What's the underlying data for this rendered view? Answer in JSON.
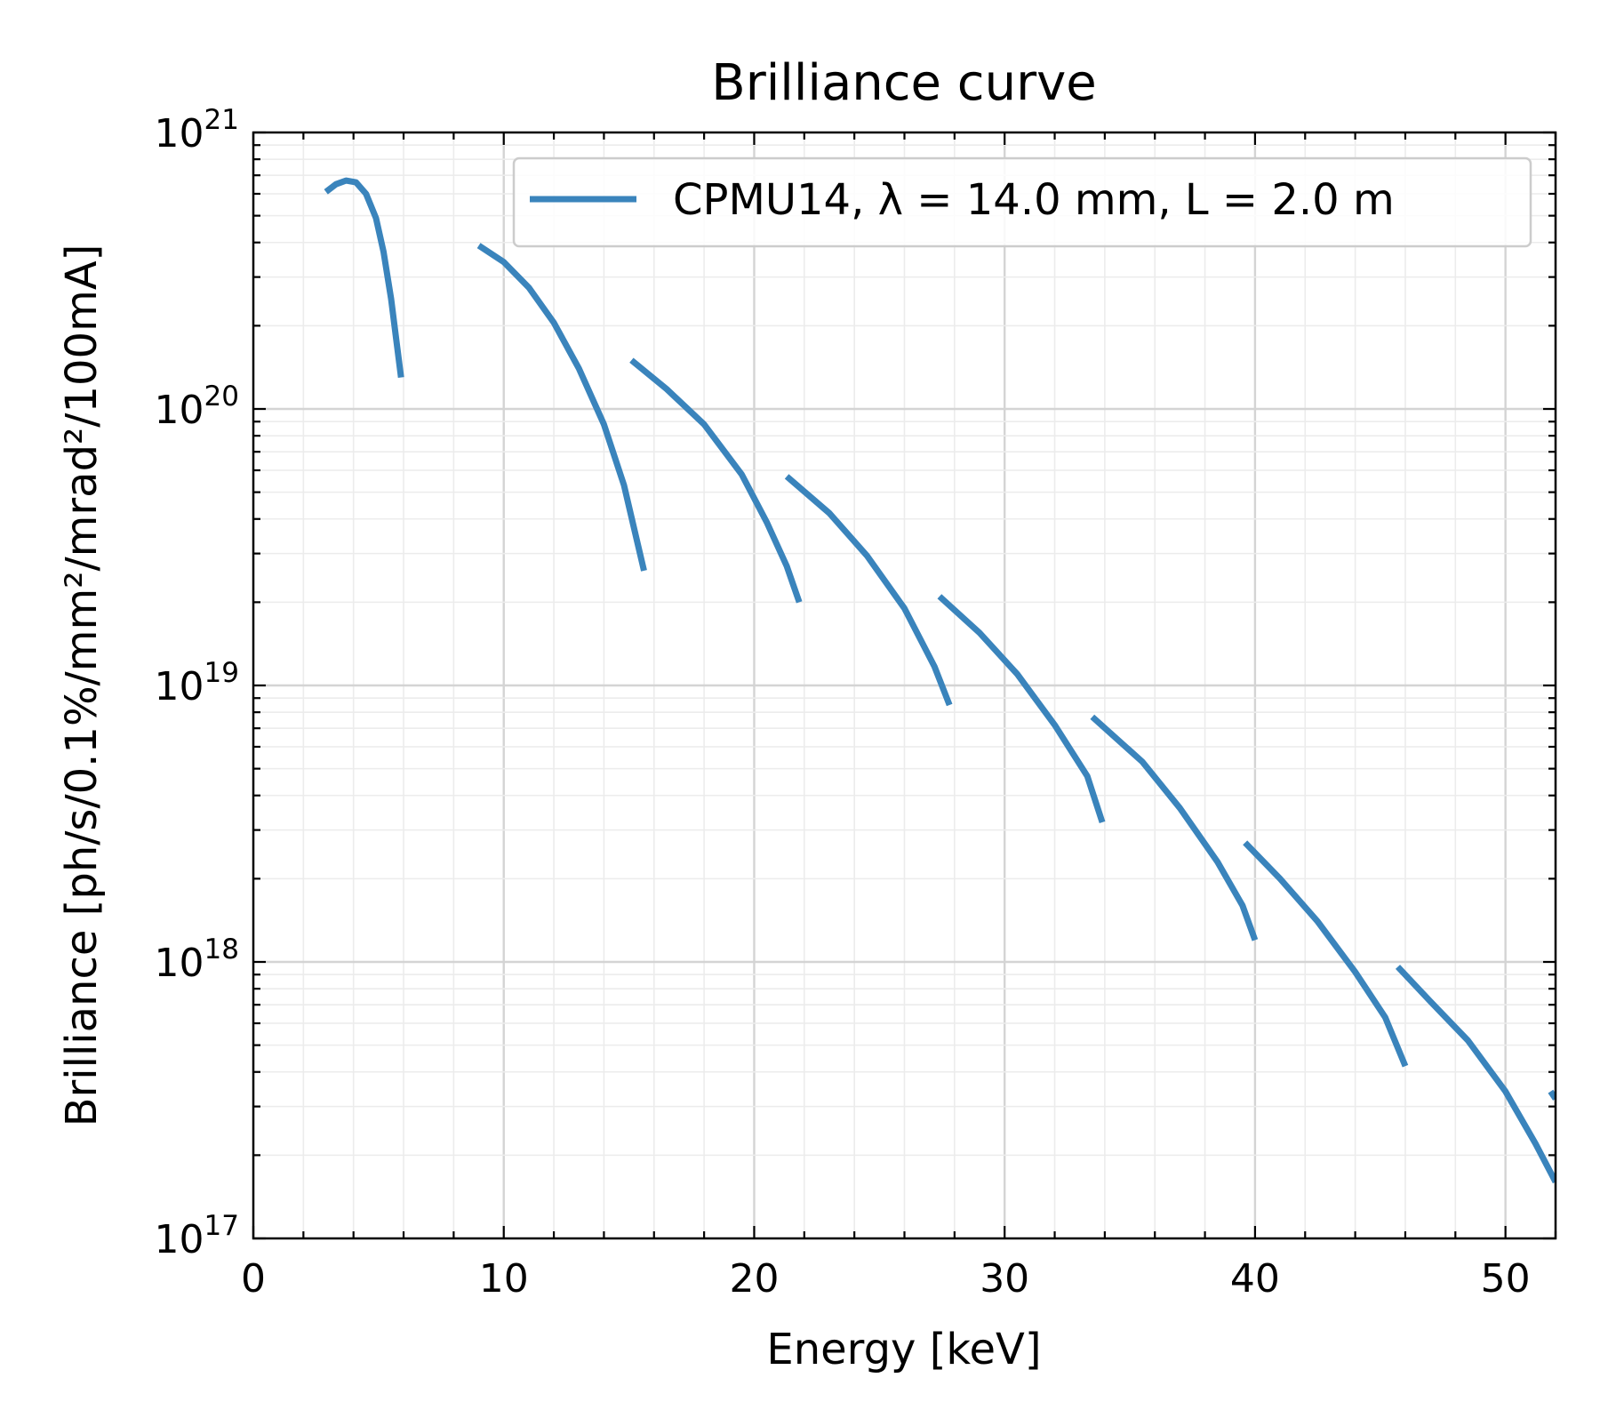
{
  "chart_data": {
    "type": "line",
    "title": "Brilliance curve",
    "xlabel": "Energy [keV]",
    "ylabel": "Brilliance [ph/s/0.1%/mm²/mrad²/100mA]",
    "xlim": [
      0,
      52
    ],
    "ylim": [
      1e+17,
      1e+21
    ],
    "yscale": "log",
    "grid": true,
    "legend": "top-right",
    "xticks": [
      {
        "value": 0,
        "label": "0"
      },
      {
        "value": 10,
        "label": "10"
      },
      {
        "value": 20,
        "label": "20"
      },
      {
        "value": 30,
        "label": "30"
      },
      {
        "value": 40,
        "label": "40"
      },
      {
        "value": 50,
        "label": "50"
      }
    ],
    "yticks": [
      {
        "value": 1e+17,
        "base": "10",
        "exp": "17"
      },
      {
        "value": 1e+18,
        "base": "10",
        "exp": "18"
      },
      {
        "value": 1e+19,
        "base": "10",
        "exp": "19"
      },
      {
        "value": 1e+20,
        "base": "10",
        "exp": "20"
      },
      {
        "value": 1e+21,
        "base": "10",
        "exp": "21"
      }
    ],
    "series": [
      {
        "name": "CPMU14, λ = 14.0 mm, L = 2.0 m",
        "color": "#3a84bc",
        "segments": [
          [
            [
              2.9,
              6.1e+20
            ],
            [
              3.3,
              6.5e+20
            ],
            [
              3.7,
              6.7e+20
            ],
            [
              4.1,
              6.6e+20
            ],
            [
              4.5,
              6e+20
            ],
            [
              4.9,
              4.9e+20
            ],
            [
              5.2,
              3.7e+20
            ],
            [
              5.5,
              2.5e+20
            ],
            [
              5.7,
              1.8e+20
            ],
            [
              5.9,
              1.3e+20
            ]
          ],
          [
            [
              9.0,
              3.9e+20
            ],
            [
              10.0,
              3.4e+20
            ],
            [
              11.0,
              2.75e+20
            ],
            [
              12.0,
              2.05e+20
            ],
            [
              13.0,
              1.4e+20
            ],
            [
              14.0,
              8.8e+19
            ],
            [
              14.8,
              5.3e+19
            ],
            [
              15.3,
              3.4e+19
            ],
            [
              15.6,
              2.6e+19
            ]
          ],
          [
            [
              15.1,
              1.5e+20
            ],
            [
              16.5,
              1.18e+20
            ],
            [
              18.0,
              8.8e+19
            ],
            [
              19.5,
              5.8e+19
            ],
            [
              20.5,
              3.9e+19
            ],
            [
              21.3,
              2.7e+19
            ],
            [
              21.8,
              2e+19
            ]
          ],
          [
            [
              21.3,
              5.7e+19
            ],
            [
              23.0,
              4.2e+19
            ],
            [
              24.5,
              2.95e+19
            ],
            [
              26.0,
              1.9e+19
            ],
            [
              27.2,
              1.17e+19
            ],
            [
              27.8,
              8.5e+18
            ]
          ],
          [
            [
              27.4,
              2.1e+19
            ],
            [
              29.0,
              1.55e+19
            ],
            [
              30.5,
              1.1e+19
            ],
            [
              32.0,
              7.2e+18
            ],
            [
              33.3,
              4.7e+18
            ],
            [
              33.9,
              3.2e+18
            ]
          ],
          [
            [
              33.5,
              7.7e+18
            ],
            [
              35.5,
              5.3e+18
            ],
            [
              37.0,
              3.6e+18
            ],
            [
              38.5,
              2.3e+18
            ],
            [
              39.5,
              1.6e+18
            ],
            [
              40.0,
              1.2e+18
            ]
          ],
          [
            [
              39.6,
              2.7e+18
            ],
            [
              41.0,
              2e+18
            ],
            [
              42.5,
              1.4e+18
            ],
            [
              44.0,
              9.2e+17
            ],
            [
              45.2,
              6.3e+17
            ],
            [
              46.0,
              4.2e+17
            ]
          ],
          [
            [
              45.7,
              9.6e+17
            ],
            [
              47.0,
              7.2e+17
            ],
            [
              48.5,
              5.2e+17
            ],
            [
              50.0,
              3.4e+17
            ],
            [
              51.2,
              2.2e+17
            ],
            [
              52.0,
              1.6e+17
            ]
          ],
          [
            [
              51.8,
              3.4e+17
            ],
            [
              52.0,
              3.2e+17
            ]
          ]
        ]
      }
    ]
  }
}
